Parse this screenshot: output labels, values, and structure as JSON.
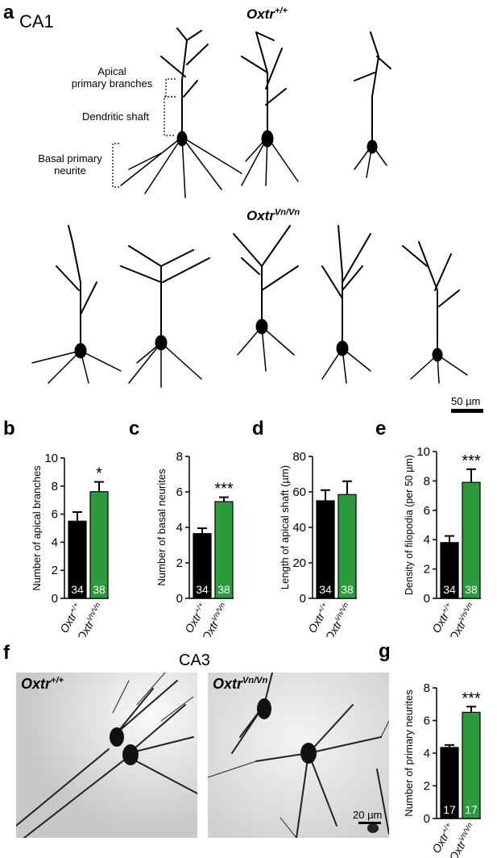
{
  "panel_a": {
    "letter": "a",
    "region": "CA1",
    "wt_label": {
      "base": "Oxtr",
      "sup": "+/+"
    },
    "mut_label": {
      "base": "Oxtr",
      "sup": "Vn/Vn"
    },
    "annotations": {
      "apical_1": "Apical",
      "apical_2": "primary branches",
      "shaft": "Dendritic shaft",
      "basal_1": "Basal primary",
      "basal_2": "neurite"
    },
    "scale_bar": "50 µm"
  },
  "panel_f": {
    "letter": "f",
    "region": "CA3",
    "wt_label": {
      "base": "Oxtr",
      "sup": "+/+"
    },
    "mut_label": {
      "base": "Oxtr",
      "sup": "Vn/Vn"
    },
    "scale_bar": "20 µm"
  },
  "colors": {
    "wt": "#000000",
    "mut": "#2e9a3e"
  },
  "chart_data": [
    {
      "panel": "b",
      "type": "bar",
      "categories": [
        "Oxtr+/+",
        "OxtrVn/Vn"
      ],
      "values": [
        5.5,
        7.6
      ],
      "errors": [
        0.65,
        0.7
      ],
      "n": [
        "34",
        "38"
      ],
      "significance": "*",
      "ylabel": "Number of apical branches",
      "ylim": [
        0,
        10
      ],
      "yticks": [
        "0",
        "2",
        "4",
        "6",
        "8",
        "10"
      ]
    },
    {
      "panel": "c",
      "type": "bar",
      "categories": [
        "Oxtr+/+",
        "OxtrVn/Vn"
      ],
      "values": [
        3.65,
        5.45
      ],
      "errors": [
        0.3,
        0.25
      ],
      "n": [
        "34",
        "38"
      ],
      "significance": "***",
      "ylabel": "Number of basal neurites",
      "ylim": [
        0,
        8
      ],
      "yticks": [
        "0",
        "2",
        "4",
        "6",
        "8"
      ]
    },
    {
      "panel": "d",
      "type": "bar",
      "categories": [
        "Oxtr+/+",
        "OxtrVn/Vn"
      ],
      "values": [
        55,
        58.5
      ],
      "errors": [
        6,
        7.5
      ],
      "n": [
        "34",
        "38"
      ],
      "significance": "",
      "ylabel": "Length of apical shaft (µm)",
      "ylim": [
        0,
        80
      ],
      "yticks": [
        "0",
        "20",
        "40",
        "60",
        "80"
      ]
    },
    {
      "panel": "e",
      "type": "bar",
      "categories": [
        "Oxtr+/+",
        "OxtrVn/Vn"
      ],
      "values": [
        3.8,
        7.9
      ],
      "errors": [
        0.45,
        0.9
      ],
      "n": [
        "34",
        "38"
      ],
      "significance": "***",
      "ylabel": "Density of filopodia (per 50 µm)",
      "ylim": [
        0,
        10
      ],
      "yticks": [
        "0",
        "2",
        "4",
        "6",
        "8",
        "10"
      ]
    },
    {
      "panel": "g",
      "type": "bar",
      "categories": [
        "Oxtr+/+",
        "OxtrVn/Vn"
      ],
      "values": [
        4.35,
        6.5
      ],
      "errors": [
        0.15,
        0.35
      ],
      "n": [
        "17",
        "17"
      ],
      "significance": "***",
      "ylabel": "Number of primary neurites",
      "ylim": [
        0,
        8
      ],
      "yticks": [
        "0",
        "2",
        "4",
        "6",
        "8"
      ]
    }
  ]
}
